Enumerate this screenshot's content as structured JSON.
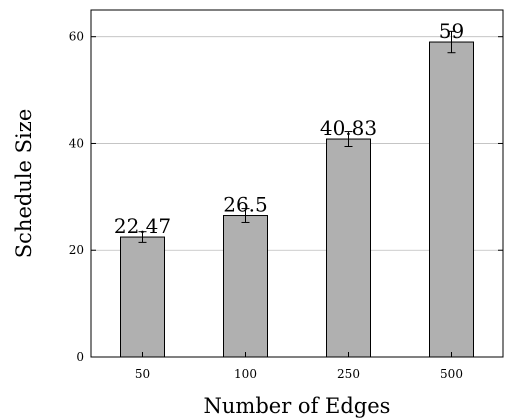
{
  "chart_data": {
    "type": "bar",
    "title": "",
    "xlabel": "Number of Edges",
    "ylabel": "Schedule Size",
    "categories": [
      "50",
      "100",
      "250",
      "500"
    ],
    "values": [
      22.47,
      26.5,
      40.83,
      59
    ],
    "data_labels": [
      "22.47",
      "26.5",
      "40.83",
      "59"
    ],
    "error": [
      1,
      1.3,
      1.4,
      2
    ],
    "ylim": [
      0,
      65
    ],
    "yticks": [
      0,
      20,
      40,
      60
    ],
    "ytick_labels": [
      "0",
      "20",
      "40",
      "60"
    ],
    "grid": "horizontal",
    "legend": "none",
    "colors": {
      "bar_fill": "#b0b0b0",
      "bar_stroke": "#000000",
      "grid": "#bdbdbd"
    }
  }
}
